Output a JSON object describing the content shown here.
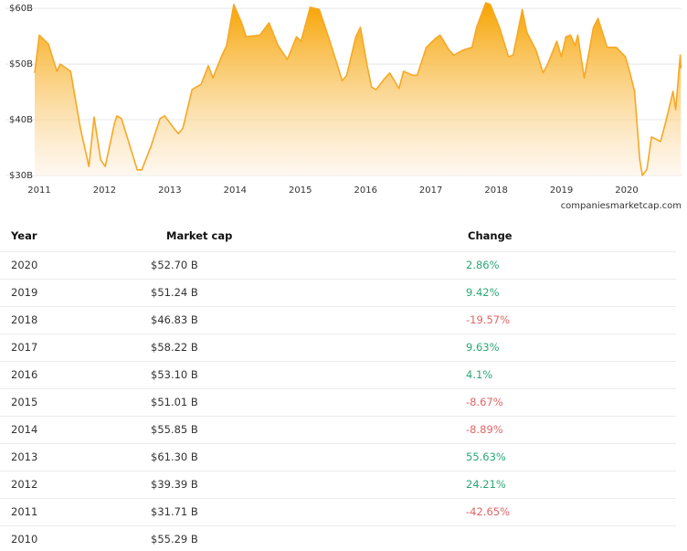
{
  "chart_data": {
    "type": "area",
    "color": "#f7a824",
    "x": [
      2010.93,
      2011.0,
      2011.14,
      2011.27,
      2011.32,
      2011.48,
      2011.63,
      2011.76,
      2011.84,
      2011.94,
      2012.01,
      2012.15,
      2012.19,
      2012.26,
      2012.38,
      2012.5,
      2012.57,
      2012.71,
      2012.85,
      2012.92,
      2013.06,
      2013.13,
      2013.2,
      2013.34,
      2013.48,
      2013.59,
      2013.66,
      2013.8,
      2013.87,
      2013.98,
      2014.1,
      2014.17,
      2014.38,
      2014.52,
      2014.66,
      2014.8,
      2014.94,
      2015.01,
      2015.15,
      2015.29,
      2015.43,
      2015.57,
      2015.64,
      2015.71,
      2015.85,
      2015.92,
      2016.02,
      2016.09,
      2016.16,
      2016.3,
      2016.37,
      2016.51,
      2016.58,
      2016.72,
      2016.79,
      2016.93,
      2017.07,
      2017.14,
      2017.28,
      2017.35,
      2017.49,
      2017.63,
      2017.7,
      2017.84,
      2017.91,
      2018.05,
      2018.19,
      2018.26,
      2018.4,
      2018.47,
      2018.61,
      2018.72,
      2018.79,
      2018.93,
      2019.0,
      2019.07,
      2019.14,
      2019.21,
      2019.25,
      2019.35,
      2019.49,
      2019.56,
      2019.7,
      2019.84,
      2019.98,
      2020.05,
      2020.12,
      2020.2,
      2020.24,
      2020.31,
      2020.38,
      2020.52,
      2020.61,
      2020.71,
      2020.75,
      2020.82,
      2020.83
    ],
    "values": [
      48.4,
      55.2,
      53.6,
      48.7,
      50.0,
      48.7,
      38.5,
      31.6,
      40.5,
      32.8,
      31.6,
      39.3,
      40.7,
      40.2,
      35.6,
      31.0,
      31.0,
      35.2,
      40.2,
      40.7,
      38.5,
      37.5,
      38.5,
      45.4,
      46.4,
      49.7,
      47.5,
      51.6,
      53.3,
      60.7,
      57.4,
      54.9,
      55.2,
      57.4,
      53.3,
      50.8,
      54.9,
      54.1,
      60.2,
      59.8,
      54.9,
      49.7,
      47.0,
      48.0,
      54.9,
      56.6,
      50.0,
      45.9,
      45.4,
      47.5,
      48.4,
      45.6,
      48.7,
      48.0,
      48.0,
      53.0,
      54.6,
      55.2,
      52.5,
      51.6,
      52.5,
      53.0,
      56.6,
      61.0,
      60.7,
      56.6,
      51.3,
      51.6,
      59.8,
      55.7,
      52.5,
      48.4,
      50.0,
      54.1,
      51.3,
      54.9,
      55.2,
      53.3,
      55.2,
      47.5,
      56.6,
      58.2,
      53.0,
      53.0,
      51.3,
      48.4,
      45.1,
      32.8,
      30.0,
      31.1,
      36.9,
      36.1,
      40.2,
      45.1,
      41.8,
      51.6,
      49.2
    ],
    "xlim": [
      2010.93,
      2020.84
    ],
    "xticks": [
      2011,
      2012,
      2013,
      2014,
      2015,
      2016,
      2017,
      2018,
      2019,
      2020
    ],
    "ylim": [
      30,
      61.5
    ],
    "yticks": [
      {
        "value": 30,
        "label": "$30B"
      },
      {
        "value": 40,
        "label": "$40B"
      },
      {
        "value": 50,
        "label": "$50B"
      },
      {
        "value": 60,
        "label": "$60B"
      }
    ],
    "grid": true,
    "source": "companiesmarketcap.com"
  },
  "table": {
    "headers": [
      "Year",
      "Market cap",
      "Change"
    ],
    "rows": [
      [
        "2020",
        "$52.70 B",
        "2.86%"
      ],
      [
        "2019",
        "$51.24 B",
        "9.42%"
      ],
      [
        "2018",
        "$46.83 B",
        "-19.57%"
      ],
      [
        "2017",
        "$58.22 B",
        "9.63%"
      ],
      [
        "2016",
        "$53.10 B",
        "4.1%"
      ],
      [
        "2015",
        "$51.01 B",
        "-8.67%"
      ],
      [
        "2014",
        "$55.85 B",
        "-8.89%"
      ],
      [
        "2013",
        "$61.30 B",
        "55.63%"
      ],
      [
        "2012",
        "$39.39 B",
        "24.21%"
      ],
      [
        "2011",
        "$31.71 B",
        "-42.65%"
      ],
      [
        "2010",
        "$55.29 B"
      ]
    ]
  }
}
